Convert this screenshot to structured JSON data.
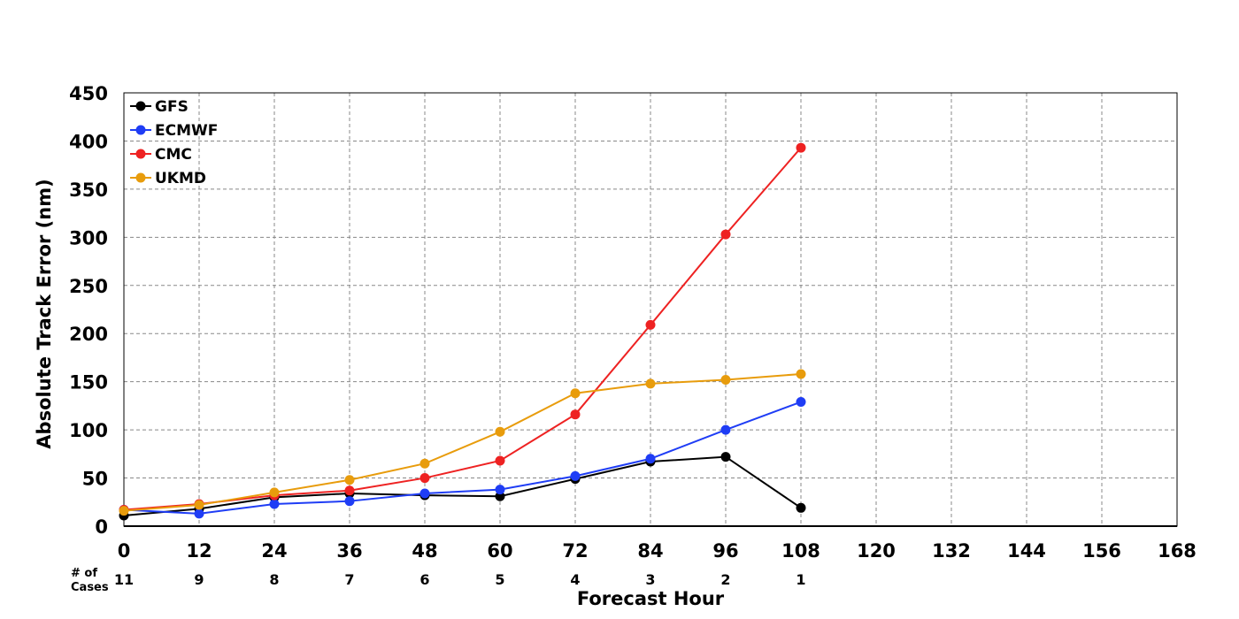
{
  "chart_data": {
    "type": "line",
    "xlabel": "Forecast Hour",
    "ylabel": "Absolute Track Error (nm)",
    "xlim": [
      0,
      168
    ],
    "ylim": [
      0,
      450
    ],
    "x_ticks": [
      0,
      12,
      24,
      36,
      48,
      60,
      72,
      84,
      96,
      108,
      120,
      132,
      144,
      156,
      168
    ],
    "y_ticks": [
      0,
      50,
      100,
      150,
      200,
      250,
      300,
      350,
      400,
      450
    ],
    "grid": true,
    "legend_position": "top-left",
    "x": [
      0,
      12,
      24,
      36,
      48,
      60,
      72,
      84,
      96,
      108
    ],
    "series": [
      {
        "name": "GFS",
        "color": "#000000",
        "values": [
          11,
          18,
          30,
          34,
          32,
          31,
          49,
          67,
          72,
          19
        ]
      },
      {
        "name": "ECMWF",
        "color": "#1f3df5",
        "values": [
          17,
          13,
          23,
          26,
          34,
          38,
          52,
          70,
          100,
          129
        ]
      },
      {
        "name": "CMC",
        "color": "#ee2222",
        "values": [
          17,
          23,
          32,
          37,
          50,
          68,
          116,
          209,
          303,
          393
        ]
      },
      {
        "name": "UKMD",
        "color": "#e89c0c",
        "values": [
          16,
          22,
          35,
          48,
          65,
          98,
          138,
          148,
          152,
          158
        ]
      }
    ],
    "cases": {
      "label_line1": "# of",
      "label_line2": "Cases",
      "x": [
        0,
        12,
        24,
        36,
        48,
        60,
        72,
        84,
        96,
        108
      ],
      "counts": [
        "11",
        "9",
        "8",
        "7",
        "6",
        "5",
        "4",
        "3",
        "2",
        "1"
      ]
    }
  }
}
